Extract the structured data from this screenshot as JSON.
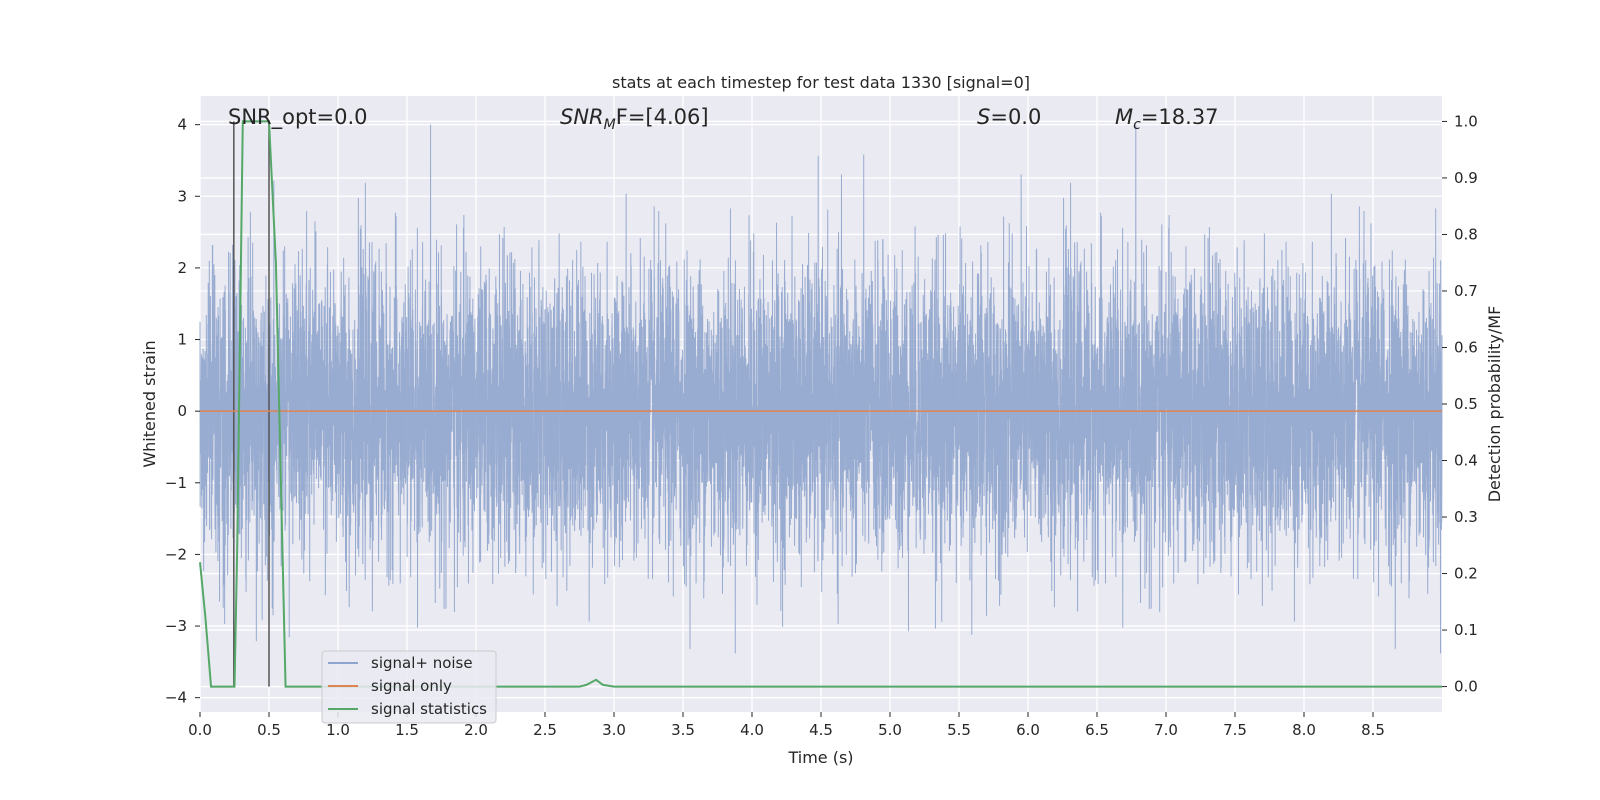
{
  "chart_data": {
    "type": "line",
    "title": "stats at each timestep for test data 1330 [signal=0]",
    "xlabel": "Time (s)",
    "ylabel_left": "Whitened strain",
    "ylabel_right": "Detection probability/MF",
    "xlim": [
      0.0,
      9.0
    ],
    "ylim_left": [
      -4.2,
      4.4
    ],
    "ylim_right": [
      -0.045,
      1.045
    ],
    "x_ticks": [
      0.0,
      0.5,
      1.0,
      1.5,
      2.0,
      2.5,
      3.0,
      3.5,
      4.0,
      4.5,
      5.0,
      5.5,
      6.0,
      6.5,
      7.0,
      7.5,
      8.0,
      8.5
    ],
    "x_tick_labels": [
      "0.0",
      "0.5",
      "1.0",
      "1.5",
      "2.0",
      "2.5",
      "3.0",
      "3.5",
      "4.0",
      "4.5",
      "5.0",
      "5.5",
      "6.0",
      "6.5",
      "7.0",
      "7.5",
      "8.0",
      "8.5"
    ],
    "y_left_ticks": [
      -4,
      -3,
      -2,
      -1,
      0,
      1,
      2,
      3,
      4
    ],
    "y_left_tick_labels": [
      "−4",
      "−3",
      "−2",
      "−1",
      "0",
      "1",
      "2",
      "3",
      "4"
    ],
    "y_right_ticks": [
      0.0,
      0.1,
      0.2,
      0.3,
      0.4,
      0.5,
      0.6,
      0.7,
      0.8,
      0.9,
      1.0
    ],
    "y_right_tick_labels": [
      "0.0",
      "0.1",
      "0.2",
      "0.3",
      "0.4",
      "0.5",
      "0.6",
      "0.7",
      "0.8",
      "0.9",
      "1.0"
    ],
    "grid": true,
    "legend_position": "lower-left",
    "annotations": {
      "snr_opt": "SNR_opt=0.0",
      "snr_mf_main": "SNR",
      "snr_mf_sub": "M",
      "snr_mf_rest": "F=[4.06]",
      "s_main": "S",
      "s_rest": "=0.0",
      "mc_main": "M",
      "mc_sub": "c",
      "mc_rest": "=18.37"
    },
    "series": [
      {
        "name": "signal+ noise",
        "color": "#8fa4cc",
        "axis": "left",
        "kind": "noise",
        "sample_rate_hz": 2048,
        "approx_std": 1.0,
        "approx_peak_max": 4.0,
        "approx_peak_min": -3.7
      },
      {
        "name": "signal only",
        "color": "#dd8452",
        "axis": "left",
        "x": [
          0.0,
          9.0
        ],
        "y": [
          0.0,
          0.0
        ]
      },
      {
        "name": "signal statistics",
        "color": "#55a868",
        "axis": "right",
        "x": [
          0.0,
          0.04,
          0.08,
          0.25,
          0.27,
          0.31,
          0.5,
          0.55,
          0.62,
          0.65,
          2.75,
          2.8,
          2.87,
          2.92,
          3.0,
          9.0
        ],
        "y": [
          0.22,
          0.12,
          0.0,
          0.0,
          0.25,
          1.0,
          1.0,
          0.75,
          0.0,
          0.0,
          0.0,
          0.003,
          0.012,
          0.003,
          0.0,
          0.0
        ]
      }
    ],
    "vertical_lines": [
      {
        "x": 0.245,
        "y0": 0.0,
        "y1": 1.0,
        "color": "#555555"
      },
      {
        "x": 0.5,
        "y0": 0.0,
        "y1": 1.0,
        "color": "#555555"
      }
    ]
  }
}
